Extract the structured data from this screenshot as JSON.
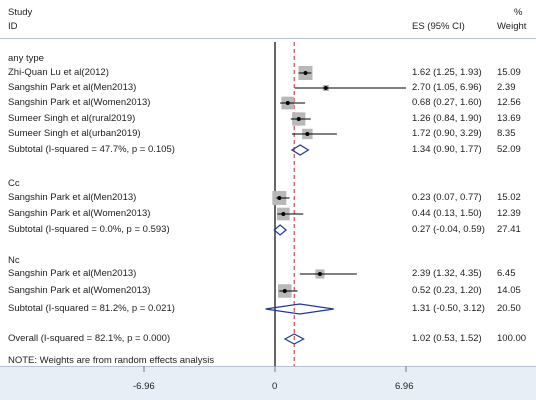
{
  "header": {
    "study": "Study",
    "id": "ID",
    "es": "ES (95% CI)",
    "pct": "%",
    "weight": "Weight"
  },
  "chart_data": {
    "type": "forest",
    "axis_ticks": [
      "-6.96",
      "0",
      "6.96"
    ],
    "xlim": [
      -6.96,
      6.96
    ],
    "null_line": 0,
    "overall_line": 1.02,
    "groups": [
      {
        "name": "any type",
        "studies": [
          {
            "label": "Zhi-Quan Lu et al(2012)",
            "es": 1.62,
            "lo": 1.25,
            "hi": 1.93,
            "es_text": "1.62 (1.25, 1.93)",
            "weight": 15.09,
            "weight_text": "15.09"
          },
          {
            "label": "Sangshin Park et al(Men2013)",
            "es": 2.7,
            "lo": 1.05,
            "hi": 6.96,
            "es_text": "2.70 (1.05, 6.96)",
            "weight": 2.39,
            "weight_text": "2.39"
          },
          {
            "label": "Sangshin Park et al(Women2013)",
            "es": 0.68,
            "lo": 0.27,
            "hi": 1.6,
            "es_text": "0.68 (0.27, 1.60)",
            "weight": 12.56,
            "weight_text": "12.56"
          },
          {
            "label": "Sumeer Singh et al(rural2019)",
            "es": 1.26,
            "lo": 0.84,
            "hi": 1.9,
            "es_text": "1.26 (0.84, 1.90)",
            "weight": 13.69,
            "weight_text": "13.69"
          },
          {
            "label": "Sumeer Singh et al(urban2019)",
            "es": 1.72,
            "lo": 0.9,
            "hi": 3.29,
            "es_text": "1.72 (0.90, 3.29)",
            "weight": 8.35,
            "weight_text": "8.35"
          }
        ],
        "subtotal": {
          "label": "Subtotal  (I-squared = 47.7%, p = 0.105)",
          "es": 1.34,
          "lo": 0.9,
          "hi": 1.77,
          "es_text": "1.34 (0.90, 1.77)",
          "weight_text": "52.09"
        }
      },
      {
        "name": "Cc",
        "studies": [
          {
            "label": "Sangshin Park et al(Men2013)",
            "es": 0.23,
            "lo": 0.07,
            "hi": 0.77,
            "es_text": "0.23 (0.07, 0.77)",
            "weight": 15.02,
            "weight_text": "15.02"
          },
          {
            "label": "Sangshin Park et al(Women2013)",
            "es": 0.44,
            "lo": 0.13,
            "hi": 1.5,
            "es_text": "0.44 (0.13, 1.50)",
            "weight": 12.39,
            "weight_text": "12.39"
          }
        ],
        "subtotal": {
          "label": "Subtotal  (I-squared = 0.0%, p = 0.593)",
          "es": 0.27,
          "lo": -0.04,
          "hi": 0.59,
          "es_text": "0.27 (-0.04, 0.59)",
          "weight_text": "27.41"
        }
      },
      {
        "name": "Nc",
        "studies": [
          {
            "label": "Sangshin Park et al(Men2013)",
            "es": 2.39,
            "lo": 1.32,
            "hi": 4.35,
            "es_text": "2.39 (1.32, 4.35)",
            "weight": 6.45,
            "weight_text": "6.45"
          },
          {
            "label": "Sangshin Park et al(Women2013)",
            "es": 0.52,
            "lo": 0.23,
            "hi": 1.2,
            "es_text": "0.52 (0.23, 1.20)",
            "weight": 14.05,
            "weight_text": "14.05"
          }
        ],
        "subtotal": {
          "label": "Subtotal  (I-squared = 81.2%, p = 0.021)",
          "es": 1.31,
          "lo": -0.5,
          "hi": 3.12,
          "es_text": "1.31 (-0.50, 3.12)",
          "weight_text": "20.50"
        }
      }
    ],
    "overall": {
      "label": "Overall  (I-squared = 82.1%, p = 0.000)",
      "es": 1.02,
      "lo": 0.53,
      "hi": 1.52,
      "es_text": "1.02 (0.53, 1.52)",
      "weight_text": "100.00"
    },
    "note": "NOTE: Weights are from random effects analysis"
  }
}
